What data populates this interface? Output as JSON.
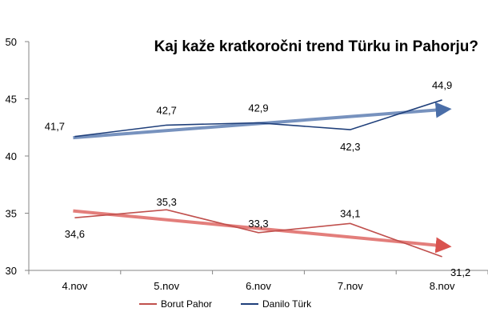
{
  "chart_data": {
    "type": "line",
    "title": "Kaj kaže kratkoročni trend Türku in Pahorju?",
    "categories": [
      "4.nov",
      "5.nov",
      "6.nov",
      "7.nov",
      "8.nov"
    ],
    "ylim": [
      30,
      50
    ],
    "yticks": [
      30,
      35,
      40,
      45,
      50
    ],
    "grid": false,
    "legend_position": "bottom",
    "series": [
      {
        "name": "Borut Pahor",
        "color": "#c0504d",
        "values": [
          34.6,
          35.3,
          33.3,
          34.1,
          31.2
        ],
        "labels": [
          "34,6",
          "35,3",
          "33,3",
          "34,1",
          "31,2"
        ],
        "trend": [
          35.2,
          32.1
        ]
      },
      {
        "name": "Danilo Türk",
        "color": "#1f3f7a",
        "values": [
          41.7,
          42.7,
          42.9,
          42.3,
          44.9
        ],
        "labels": [
          "41,7",
          "42,7",
          "42,9",
          "42,3",
          "44,9"
        ],
        "trend": [
          41.6,
          44.1
        ]
      }
    ]
  }
}
